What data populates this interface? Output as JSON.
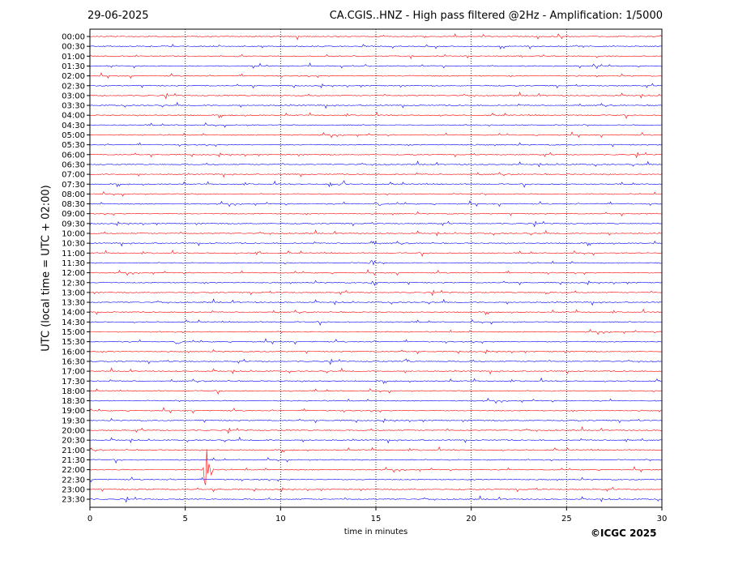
{
  "header": {
    "date": "29-06-2025",
    "title": "CA.CGIS..HNZ - High pass filtered @2Hz - Amplification: 1/5000"
  },
  "footer": {
    "copyright": "©ICGC 2025"
  },
  "chart_data": {
    "type": "line",
    "title": "CA.CGIS..HNZ - High pass filtered @2Hz - Amplification: 1/5000",
    "xlabel": "time in minutes",
    "ylabel": "UTC (local time = UTC + 02:00)",
    "xlim": [
      0,
      30
    ],
    "x_ticks": [
      "0",
      "5",
      "10",
      "15",
      "20",
      "25",
      "30"
    ],
    "x_tick_values": [
      0,
      5,
      10,
      15,
      20,
      25,
      30
    ],
    "vertical_gridlines": [
      5,
      10,
      15,
      20,
      25
    ],
    "grid": "vertical dotted",
    "rows": [
      "00:00",
      "00:30",
      "01:00",
      "01:30",
      "02:00",
      "02:30",
      "03:00",
      "03:30",
      "04:00",
      "04:30",
      "05:00",
      "05:30",
      "06:00",
      "06:30",
      "07:00",
      "07:30",
      "08:00",
      "08:30",
      "09:00",
      "09:30",
      "10:00",
      "10:30",
      "11:00",
      "11:30",
      "12:00",
      "12:30",
      "13:00",
      "13:30",
      "14:00",
      "14:30",
      "15:00",
      "15:30",
      "16:00",
      "16:30",
      "17:00",
      "17:30",
      "18:00",
      "18:30",
      "19:00",
      "19:30",
      "20:00",
      "20:30",
      "21:00",
      "21:30",
      "22:00",
      "22:30",
      "23:00",
      "23:30"
    ],
    "row_colors": [
      "#ff0000",
      "#0000ff"
    ],
    "events": [
      {
        "row": "07:30",
        "minute": 12.6,
        "strength": 0.7
      },
      {
        "row": "07:30",
        "minute": 13.3,
        "strength": 0.8
      },
      {
        "row": "08:30",
        "minute": 15.1,
        "strength": 0.6
      },
      {
        "row": "10:30",
        "minute": 14.8,
        "strength": 0.7
      },
      {
        "row": "11:00",
        "minute": 8.8,
        "strength": 0.6
      },
      {
        "row": "11:30",
        "minute": 14.8,
        "strength": 0.8
      },
      {
        "row": "12:30",
        "minute": 14.9,
        "strength": 0.8
      },
      {
        "row": "13:00",
        "minute": 23.9,
        "strength": 0.6
      },
      {
        "row": "15:30",
        "minute": 4.6,
        "strength": 0.6
      },
      {
        "row": "16:30",
        "minute": 16.6,
        "strength": 0.6
      },
      {
        "row": "20:30",
        "minute": 28.2,
        "strength": 0.5
      },
      {
        "row": "22:00",
        "minute": 6.2,
        "strength": 3.5
      }
    ]
  }
}
